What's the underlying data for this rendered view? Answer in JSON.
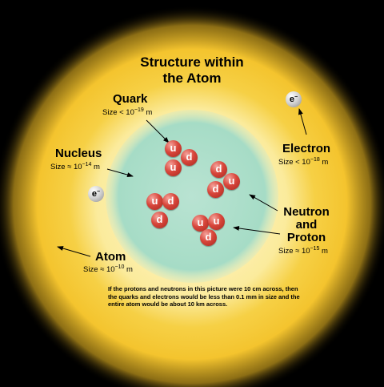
{
  "title_lines": [
    "Structure within",
    "the Atom"
  ],
  "labels": {
    "quark": {
      "name": "Quark",
      "size_prefix": "Size < 10",
      "exp": "−19",
      "unit": " m"
    },
    "nucleus": {
      "name": "Nucleus",
      "size_prefix": "Size ≈ 10",
      "exp": "−14",
      "unit": " m"
    },
    "electron": {
      "name": "Electron",
      "size_prefix": "Size < 10",
      "exp": "−18",
      "unit": " m"
    },
    "neutron_proton": {
      "name_lines": [
        "Neutron",
        "and",
        "Proton"
      ],
      "size_prefix": "Size ≈ 10",
      "exp": "−15",
      "unit": " m"
    },
    "atom": {
      "name": "Atom",
      "size_prefix": "Size ≈ 10",
      "exp": "−10",
      "unit": " m"
    }
  },
  "electron_symbol": {
    "base": "e",
    "sup": "−"
  },
  "quark_symbols": [
    "u",
    "d",
    "u",
    "d",
    "d",
    "u",
    "u",
    "d",
    "d",
    "u",
    "u",
    "d"
  ],
  "note": "If the protons and neutrons in this picture were 10 cm across, then the quarks and electrons would be less than 0.1 mm in size and the entire atom would be about 10 km across.",
  "colors": {
    "background": "#000000",
    "atom_glow": "#f5c830",
    "atom_core": "#fff8d0",
    "nucleus": "#a9dcc8"
  }
}
